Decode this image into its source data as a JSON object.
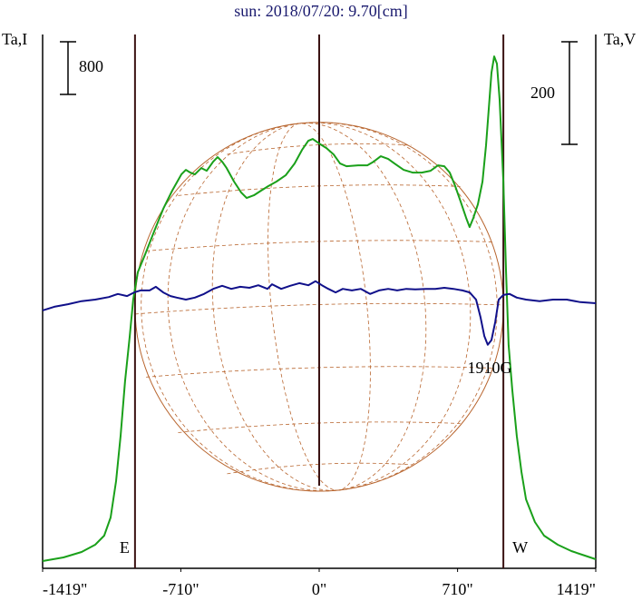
{
  "chart_data": {
    "type": "line",
    "title": "sun: 2018/07/20: 9.70[cm]",
    "y_label": "Ta,I",
    "y2_label": "Ta,V",
    "xlim": [
      -1419,
      1419
    ],
    "xticks": [
      {
        "value": -1419,
        "label": "-1419\""
      },
      {
        "value": -710,
        "label": "-710\""
      },
      {
        "value": 0,
        "label": "0\""
      },
      {
        "value": 710,
        "label": "710\""
      },
      {
        "value": 1419,
        "label": "1419\""
      }
    ],
    "ylim": [
      0,
      8110
    ],
    "y2lim": [
      -510,
      531
    ],
    "y_scale_bar": 800,
    "y2_scale_bar": 200,
    "limbs": [
      -945,
      945
    ],
    "limb_labels": [
      "E",
      "W"
    ],
    "annotation": "1910G",
    "series": [
      {
        "name": "I",
        "color": "#1aa01a",
        "x": [
          -1419,
          -1312,
          -1219,
          -1149,
          -1103,
          -1070,
          -1042,
          -1019,
          -996,
          -972,
          -954,
          -931,
          -893,
          -847,
          -800,
          -754,
          -707,
          -684,
          -661,
          -638,
          -605,
          -577,
          -544,
          -521,
          -498,
          -475,
          -437,
          -400,
          -372,
          -335,
          -298,
          -261,
          -219,
          -172,
          -126,
          -88,
          -56,
          -33,
          0,
          37,
          74,
          107,
          140,
          200,
          247,
          279,
          316,
          354,
          386,
          433,
          479,
          526,
          572,
          610,
          642,
          670,
          698,
          726,
          754,
          772,
          791,
          814,
          838,
          856,
          870,
          884,
          898,
          912,
          926,
          945,
          959,
          972,
          991,
          1014,
          1038,
          1061,
          1107,
          1154,
          1224,
          1294,
          1363,
          1419
        ],
        "values": [
          110,
          165,
          248,
          359,
          496,
          772,
          1324,
          2013,
          2841,
          3530,
          4082,
          4496,
          4771,
          5116,
          5461,
          5737,
          5985,
          6054,
          6012,
          5985,
          6081,
          6040,
          6178,
          6247,
          6178,
          6081,
          5875,
          5709,
          5626,
          5668,
          5737,
          5806,
          5875,
          5971,
          6150,
          6357,
          6495,
          6523,
          6454,
          6385,
          6288,
          6150,
          6109,
          6123,
          6123,
          6178,
          6261,
          6219,
          6150,
          6054,
          6012,
          6012,
          6040,
          6123,
          6109,
          6012,
          5806,
          5571,
          5323,
          5185,
          5323,
          5530,
          5875,
          6426,
          6978,
          7529,
          7778,
          7667,
          7116,
          5875,
          4496,
          3392,
          2703,
          2013,
          1462,
          1048,
          703,
          496,
          359,
          262,
          193,
          138
        ]
      },
      {
        "name": "V",
        "color": "#10108a",
        "axis": "y2",
        "x": [
          -1419,
          -1359,
          -1289,
          -1219,
          -1149,
          -1079,
          -1033,
          -986,
          -949,
          -917,
          -870,
          -838,
          -800,
          -763,
          -731,
          -684,
          -638,
          -591,
          -544,
          -498,
          -451,
          -405,
          -358,
          -312,
          -265,
          -242,
          -195,
          -149,
          -102,
          -56,
          -19,
          14,
          47,
          84,
          121,
          168,
          214,
          261,
          307,
          354,
          400,
          447,
          493,
          549,
          596,
          642,
          689,
          735,
          772,
          805,
          828,
          847,
          865,
          884,
          903,
          921,
          945,
          977,
          1014,
          1061,
          1131,
          1200,
          1270,
          1340,
          1419
        ],
        "values": [
          -7,
          0,
          5,
          11,
          14,
          19,
          25,
          21,
          28,
          32,
          32,
          39,
          28,
          21,
          18,
          14,
          18,
          25,
          35,
          41,
          35,
          39,
          37,
          42,
          35,
          44,
          35,
          41,
          46,
          42,
          50,
          42,
          35,
          28,
          35,
          32,
          35,
          25,
          32,
          35,
          32,
          35,
          34,
          35,
          35,
          37,
          35,
          32,
          28,
          14,
          -21,
          -57,
          -74,
          -65,
          -30,
          14,
          23,
          25,
          18,
          14,
          11,
          14,
          14,
          9,
          7
        ]
      }
    ]
  }
}
